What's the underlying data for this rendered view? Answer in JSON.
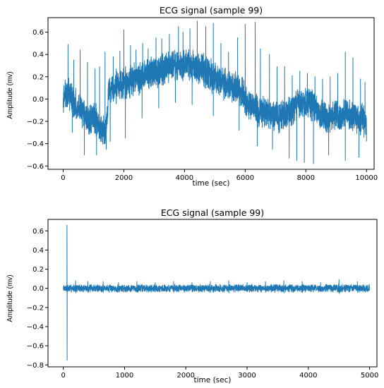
{
  "chart_data": [
    {
      "type": "line",
      "title": "ECG signal (sample 99)",
      "xlabel": "time (sec)",
      "ylabel": "Amplitude (mv)",
      "xlim": [
        -500,
        10250
      ],
      "ylim": [
        -0.63,
        0.73
      ],
      "xticks": [
        0,
        2000,
        4000,
        6000,
        8000,
        10000
      ],
      "xtick_labels": [
        "0",
        "2000",
        "4000",
        "6000",
        "8000",
        "10000"
      ],
      "yticks": [
        -0.6,
        -0.4,
        -0.2,
        0.0,
        0.2,
        0.4,
        0.6
      ],
      "ytick_labels": [
        "−0.6",
        "−0.4",
        "−0.2",
        "0.0",
        "0.2",
        "0.4",
        "0.6"
      ],
      "grid": false,
      "color": "#1f77b4",
      "series": [
        {
          "x": [
            0,
            100,
            200,
            300,
            400,
            500,
            600,
            700,
            800,
            900,
            1000,
            1100,
            1200,
            1300,
            1400,
            1500,
            1600,
            1700,
            1800,
            1900,
            2000,
            2100,
            2200,
            2300,
            2400,
            2500,
            2600,
            2700,
            2800,
            2900,
            3000,
            3100,
            3200,
            3300,
            3400,
            3500,
            3600,
            3700,
            3800,
            3900,
            4000,
            4100,
            4200,
            4300,
            4400,
            4500,
            4600,
            4700,
            4800,
            4900,
            5000,
            5100,
            5200,
            5300,
            5400,
            5500,
            5600,
            5700,
            5800,
            5900,
            6000,
            6100,
            6200,
            6300,
            6400,
            6500,
            6600,
            6700,
            6800,
            6900,
            7000,
            7100,
            7200,
            7300,
            7400,
            7500,
            7600,
            7700,
            7800,
            7900,
            8000,
            8100,
            8200,
            8300,
            8400,
            8500,
            8600,
            8700,
            8800,
            8900,
            9000,
            9100,
            9200,
            9300,
            9400,
            9500,
            9600,
            9700,
            9800,
            9900,
            10000
          ],
          "baseline": [
            0.0,
            0.03,
            0.05,
            0.0,
            -0.05,
            -0.07,
            -0.1,
            -0.13,
            -0.17,
            -0.18,
            -0.17,
            -0.2,
            -0.24,
            -0.27,
            -0.3,
            0.05,
            0.08,
            0.1,
            0.12,
            0.14,
            0.15,
            0.13,
            0.16,
            0.18,
            0.2,
            0.18,
            0.2,
            0.22,
            0.23,
            0.24,
            0.25,
            0.24,
            0.26,
            0.27,
            0.28,
            0.3,
            0.3,
            0.3,
            0.31,
            0.3,
            0.29,
            0.31,
            0.3,
            0.29,
            0.28,
            0.28,
            0.27,
            0.25,
            0.22,
            0.2,
            0.18,
            0.16,
            0.15,
            0.14,
            0.12,
            0.12,
            0.11,
            0.1,
            0.09,
            0.05,
            0.0,
            -0.03,
            -0.05,
            -0.08,
            -0.1,
            -0.12,
            -0.1,
            -0.12,
            -0.13,
            -0.14,
            -0.15,
            -0.16,
            -0.15,
            -0.13,
            -0.12,
            -0.1,
            -0.08,
            -0.05,
            -0.03,
            -0.05,
            -0.04,
            -0.03,
            -0.05,
            -0.07,
            -0.1,
            -0.12,
            -0.15,
            -0.17,
            -0.17,
            -0.15,
            -0.14,
            -0.15,
            -0.14,
            -0.15,
            -0.15,
            -0.16,
            -0.17,
            -0.18,
            -0.17,
            -0.2,
            -0.25
          ],
          "peak_x": [
            160,
            350,
            560,
            800,
            1050,
            1200,
            1380,
            1650,
            1870,
            2000,
            2220,
            2400,
            2620,
            2800,
            3060,
            3250,
            3500,
            3800,
            3950,
            4180,
            4420,
            4700,
            4950,
            5200,
            5450,
            5750,
            6000,
            6330,
            6500,
            6800,
            7050,
            7300,
            7550,
            7800,
            8050,
            8300,
            8550,
            8800,
            9050,
            9300,
            9550,
            9800,
            9950
          ],
          "peak_y": [
            0.49,
            0.35,
            0.44,
            0.33,
            0.27,
            0.29,
            0.42,
            0.38,
            0.43,
            0.62,
            0.48,
            0.44,
            0.5,
            0.45,
            0.55,
            0.54,
            0.58,
            0.65,
            0.6,
            0.63,
            0.7,
            0.65,
            0.68,
            0.5,
            0.42,
            0.55,
            0.67,
            0.69,
            0.45,
            0.4,
            0.29,
            0.29,
            0.21,
            0.25,
            0.23,
            0.2,
            0.18,
            0.2,
            0.23,
            0.42,
            0.37,
            0.18,
            0.15
          ],
          "trough_x": [
            300,
            700,
            1100,
            1420,
            1550,
            2050,
            2600,
            3150,
            3700,
            4250,
            4950,
            5800,
            6400,
            6900,
            7450,
            7700,
            7950,
            8250,
            8750,
            9300,
            9750
          ],
          "trough_y": [
            -0.3,
            -0.5,
            -0.5,
            -0.45,
            -0.38,
            -0.35,
            -0.17,
            -0.08,
            -0.03,
            -0.05,
            -0.15,
            -0.28,
            -0.42,
            -0.45,
            -0.53,
            -0.55,
            -0.57,
            -0.58,
            -0.5,
            -0.55,
            -0.52
          ]
        }
      ]
    },
    {
      "type": "line",
      "title": "ECG signal (sample 99)",
      "xlabel": "time (sec)",
      "ylabel": "Amplitude (mv)",
      "xlim": [
        -250,
        5120
      ],
      "ylim": [
        -0.82,
        0.72
      ],
      "xticks": [
        0,
        1000,
        2000,
        3000,
        4000,
        5000
      ],
      "xtick_labels": [
        "0",
        "1000",
        "2000",
        "3000",
        "4000",
        "5000"
      ],
      "yticks": [
        -0.8,
        -0.6,
        -0.4,
        -0.2,
        0.0,
        0.2,
        0.4,
        0.6
      ],
      "ytick_labels": [
        "−0.8",
        "−0.6",
        "−0.4",
        "−0.2",
        "0.0",
        "0.2",
        "0.4",
        "0.6"
      ],
      "grid": false,
      "color": "#1f77b4",
      "series": [
        {
          "x": [
            0,
            5000
          ],
          "baseline": [
            0.0,
            0.0
          ],
          "spike_x": 60,
          "spike_max": 0.66,
          "spike_min": -0.75,
          "band": 0.04,
          "peak_x": [
            200,
            400,
            650,
            900,
            1200,
            1500,
            1800,
            2100,
            2400,
            2700,
            3000,
            3300,
            3600,
            3900,
            4200,
            4500,
            4800
          ],
          "peak_y": [
            0.08,
            0.07,
            0.07,
            0.06,
            0.07,
            0.06,
            0.07,
            0.06,
            0.07,
            0.08,
            0.06,
            0.07,
            0.08,
            0.07,
            0.06,
            0.09,
            0.07
          ]
        }
      ]
    }
  ]
}
